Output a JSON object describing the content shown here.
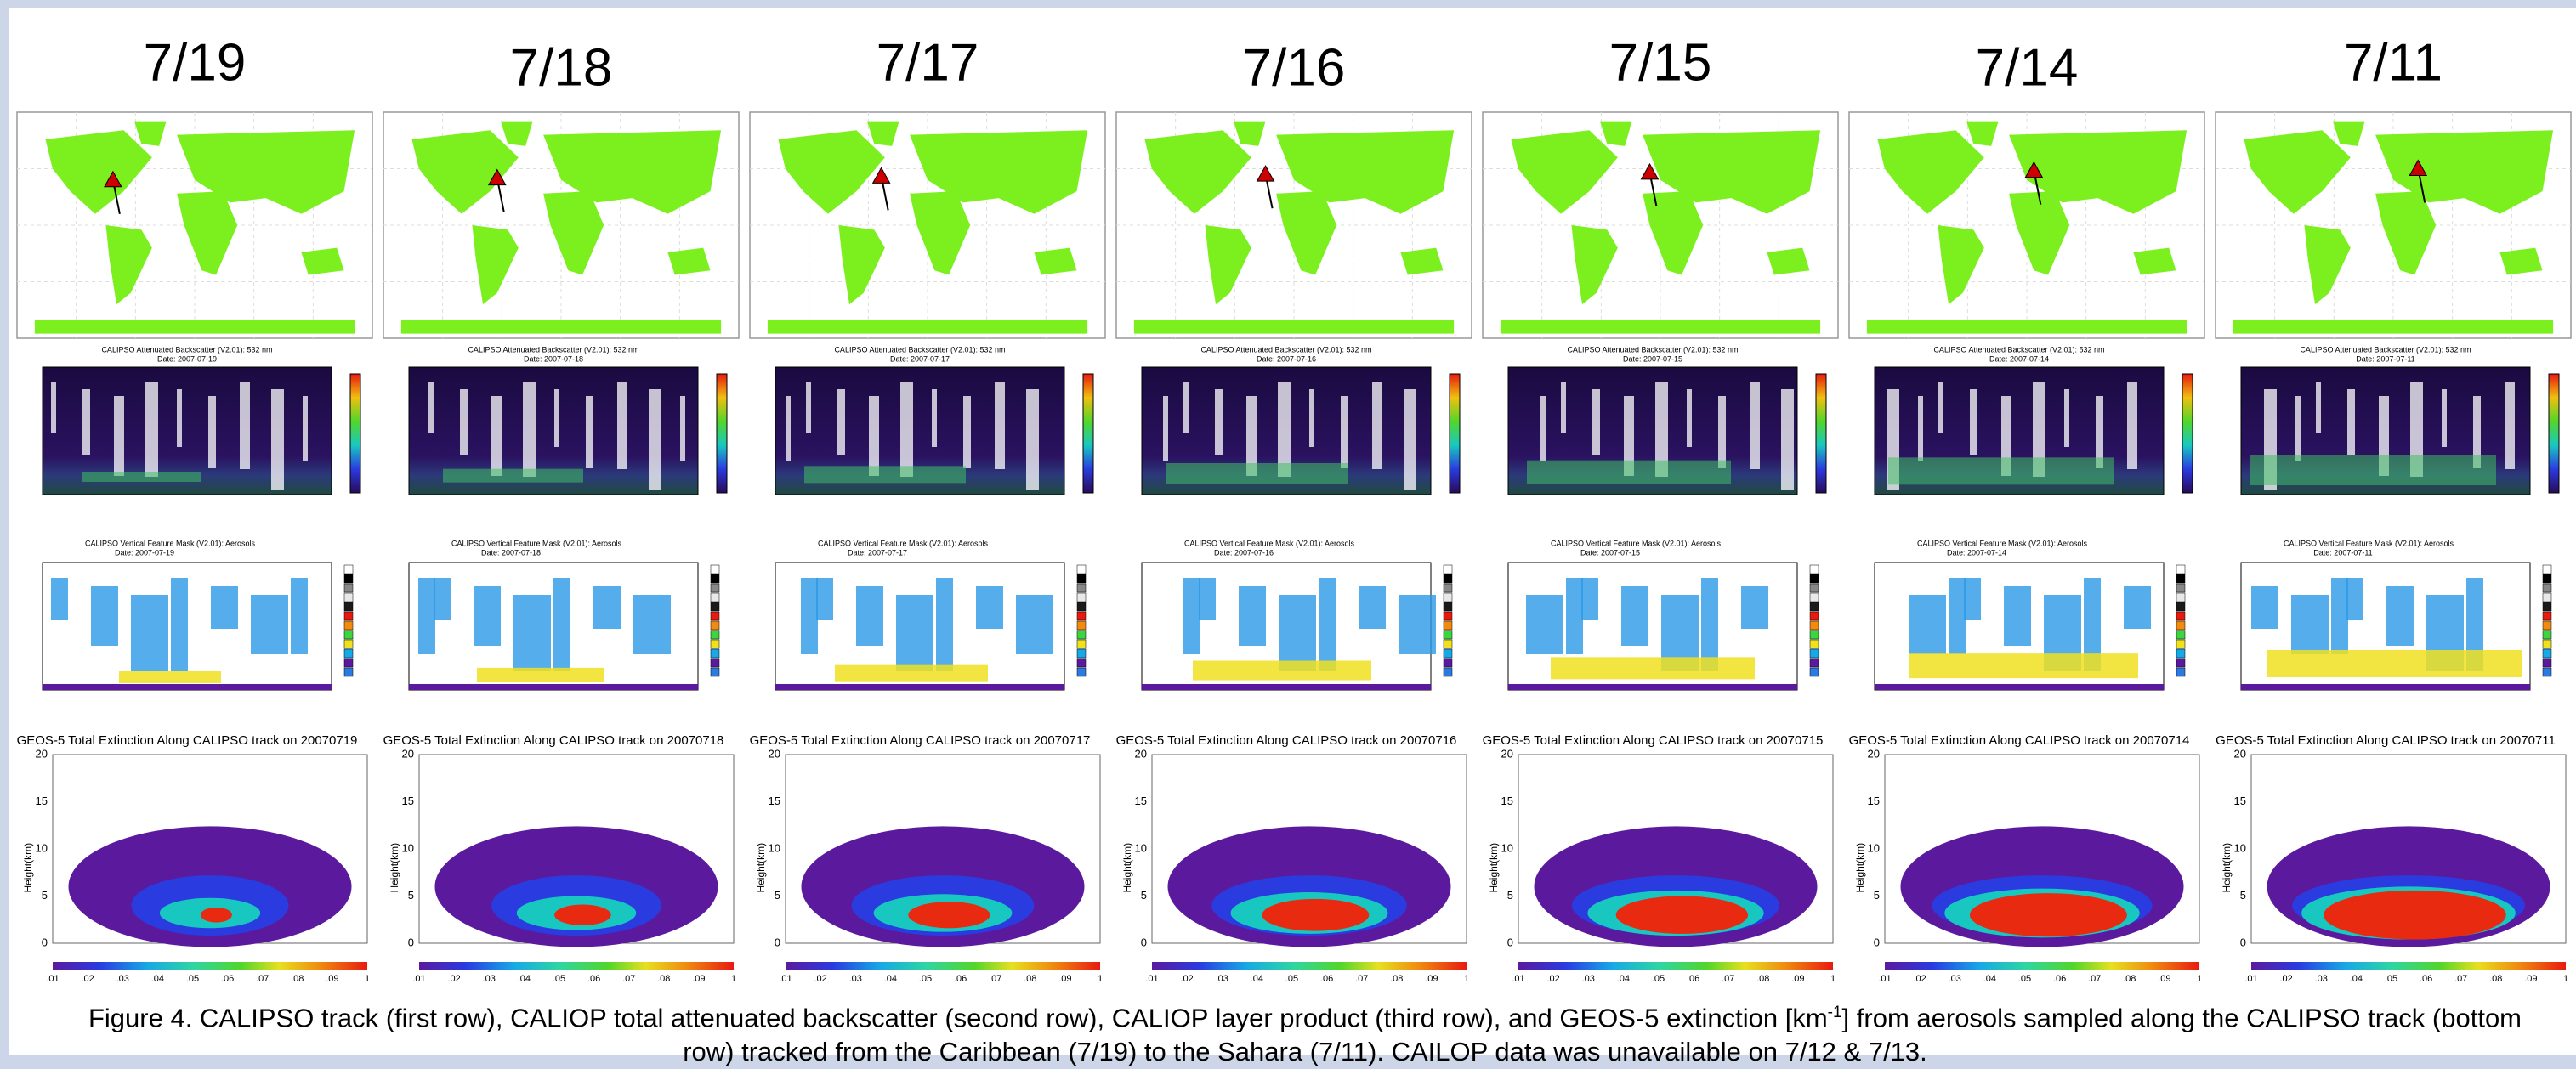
{
  "columns": [
    {
      "date": "7/19",
      "backscatter_title": "CALIPSO Attenuated Backscatter (V2.01): 532 nm",
      "backscatter_date": "Date: 2007-07-19",
      "vfm_title": "CALIPSO Vertical Feature Mask (V2.01): Aerosols",
      "vfm_date": "Date: 2007-07-19",
      "geos_title": "GEOS-5 Total Extinction Along CALIPSO track on 20070719"
    },
    {
      "date": "7/18",
      "backscatter_title": "CALIPSO Attenuated Backscatter (V2.01): 532 nm",
      "backscatter_date": "Date: 2007-07-18",
      "vfm_title": "CALIPSO Vertical Feature Mask (V2.01): Aerosols",
      "vfm_date": "Date: 2007-07-18",
      "geos_title": "GEOS-5 Total Extinction Along CALIPSO track on 20070718"
    },
    {
      "date": "7/17",
      "backscatter_title": "CALIPSO Attenuated Backscatter (V2.01): 532 nm",
      "backscatter_date": "Date: 2007-07-17",
      "vfm_title": "CALIPSO Vertical Feature Mask (V2.01): Aerosols",
      "vfm_date": "Date: 2007-07-17",
      "geos_title": "GEOS-5 Total Extinction Along CALIPSO track on 20070717"
    },
    {
      "date": "7/16",
      "backscatter_title": "CALIPSO Attenuated Backscatter (V2.01): 532 nm",
      "backscatter_date": "Date: 2007-07-16",
      "vfm_title": "CALIPSO Vertical Feature Mask (V2.01): Aerosols",
      "vfm_date": "Date: 2007-07-16",
      "geos_title": "GEOS-5 Total Extinction Along CALIPSO track on 20070716"
    },
    {
      "date": "7/15",
      "backscatter_title": "CALIPSO Attenuated Backscatter (V2.01): 532 nm",
      "backscatter_date": "Date: 2007-07-15",
      "vfm_title": "CALIPSO Vertical Feature Mask (V2.01): Aerosols",
      "vfm_date": "Date: 2007-07-15",
      "geos_title": "GEOS-5 Total Extinction Along CALIPSO track on 20070715"
    },
    {
      "date": "7/14",
      "backscatter_title": "CALIPSO Attenuated Backscatter (V2.01): 532 nm",
      "backscatter_date": "Date: 2007-07-14",
      "vfm_title": "CALIPSO Vertical Feature Mask (V2.01): Aerosols",
      "vfm_date": "Date: 2007-07-14",
      "geos_title": "GEOS-5 Total Extinction Along CALIPSO track on 20070714"
    },
    {
      "date": "7/11",
      "backscatter_title": "CALIPSO Attenuated Backscatter (V2.01): 532 nm",
      "backscatter_date": "Date: 2007-07-11",
      "vfm_title": "CALIPSO Vertical Feature Mask (V2.01): Aerosols",
      "vfm_date": "Date: 2007-07-11",
      "geos_title": "GEOS-5 Total Extinction Along CALIPSO track on 20070711"
    }
  ],
  "geos_axis_label": "Height(km)",
  "geos_yticks": [
    "0",
    "5",
    "10",
    "15",
    "20"
  ],
  "colorbar_labels": [
    ".01",
    ".02",
    ".03",
    ".04",
    ".05",
    ".06",
    ".07",
    ".08",
    ".09",
    "1"
  ],
  "caption": {
    "before": "Figure 4.  CALIPSO track (first row), CALIOP total attenuated backscatter (second row), CALIOP layer product (third row), and GEOS-5 extinction [km",
    "superscript": "-1",
    "after": "] from aerosols sampled along the CALIPSO track (bottom row) tracked from the Caribbean (7/19) to the Sahara (7/11).  CAILOP data was unavailable on 7/12 & 7/13."
  }
}
